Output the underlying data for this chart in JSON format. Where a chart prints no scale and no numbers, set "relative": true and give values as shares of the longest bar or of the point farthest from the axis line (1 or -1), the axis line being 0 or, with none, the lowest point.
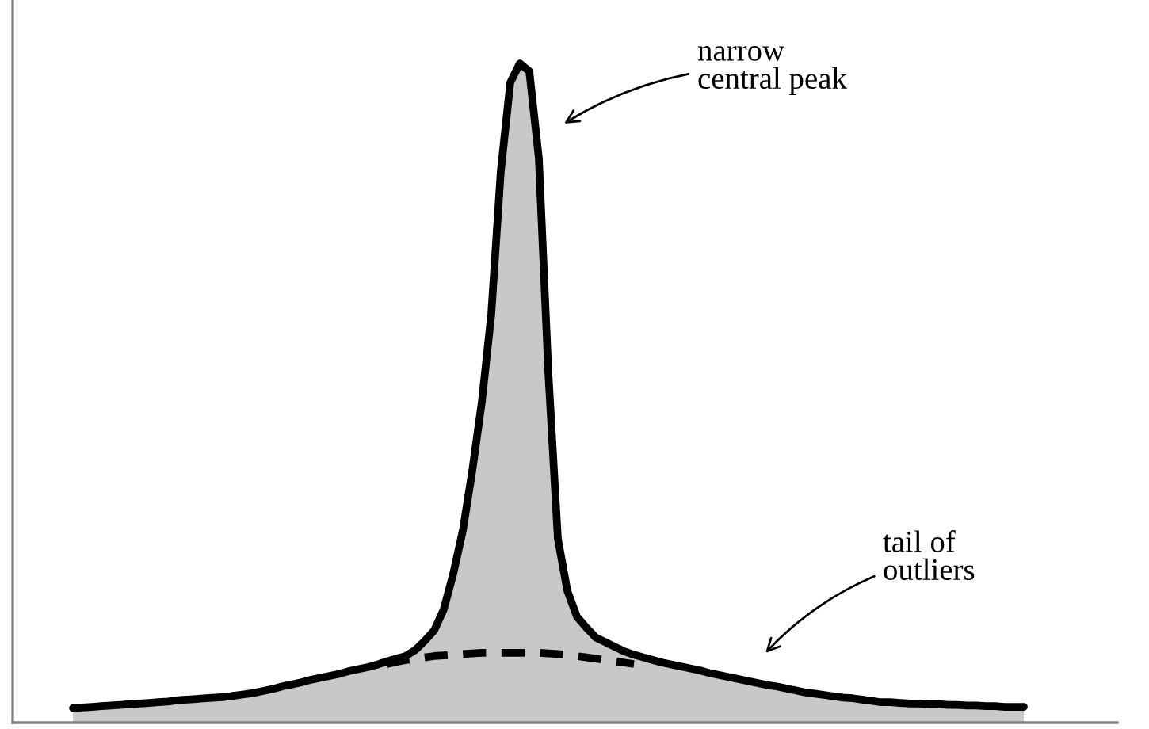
{
  "chart_data": {
    "type": "area",
    "relative": true,
    "categories": [
      null,
      null,
      null,
      null,
      null,
      null,
      null,
      null,
      null,
      null,
      null,
      null,
      null,
      null,
      null,
      null,
      null,
      null,
      null,
      null,
      null,
      null,
      null,
      null,
      null,
      null,
      null,
      null,
      null,
      null,
      null,
      null,
      null,
      null,
      null,
      null,
      null,
      null,
      null,
      null,
      null,
      null,
      null,
      null,
      null,
      null,
      null,
      null,
      null,
      null,
      null,
      null,
      null,
      null,
      null,
      null,
      null,
      null,
      null,
      null,
      null,
      null,
      null,
      null,
      null,
      null,
      null,
      null,
      null,
      null,
      null,
      null,
      null,
      null,
      null,
      null,
      null,
      null,
      null,
      null,
      null,
      null,
      null,
      null,
      null,
      null,
      null,
      null,
      null,
      null,
      null,
      null,
      null,
      null,
      null,
      null,
      null,
      null,
      null,
      null,
      null
    ],
    "series": [
      {
        "color": "#c8c8c8",
        "values": [
          0.022,
          0.023,
          0.024,
          0.025,
          0.026,
          0.027,
          0.028,
          0.029,
          0.03,
          0.031,
          0.032,
          0.034,
          0.035,
          0.036,
          0.037,
          0.038,
          0.039,
          0.041,
          0.043,
          0.045,
          0.048,
          0.051,
          0.055,
          0.058,
          0.061,
          0.065,
          0.068,
          0.071,
          0.074,
          0.078,
          0.081,
          0.084,
          0.088,
          0.093,
          0.097,
          0.101,
          0.11,
          0.124,
          0.14,
          0.172,
          0.226,
          0.291,
          0.382,
          0.486,
          0.62,
          0.837,
          0.971,
          1.0,
          0.988,
          0.856,
          0.531,
          0.279,
          0.2,
          0.161,
          0.144,
          0.129,
          0.122,
          0.115,
          0.108,
          0.103,
          0.099,
          0.095,
          0.091,
          0.088,
          0.085,
          0.082,
          0.079,
          0.075,
          0.072,
          0.069,
          0.066,
          0.063,
          0.06,
          0.057,
          0.055,
          0.052,
          0.049,
          0.046,
          0.044,
          0.042,
          0.04,
          0.038,
          0.037,
          0.035,
          0.033,
          0.031,
          0.031,
          0.03,
          0.029,
          0.029,
          0.028,
          0.028,
          0.027,
          0.027,
          0.026,
          0.026,
          0.025,
          0.025,
          0.024,
          0.024,
          0.024
        ]
      },
      {
        "type": "line",
        "color": "#000000",
        "line_style": "dashed",
        "values": [
          null,
          null,
          null,
          null,
          null,
          null,
          null,
          null,
          null,
          null,
          null,
          null,
          null,
          null,
          null,
          null,
          null,
          null,
          null,
          null,
          null,
          null,
          null,
          null,
          null,
          null,
          null,
          null,
          null,
          null,
          null,
          null,
          null,
          0.089,
          0.092,
          0.095,
          0.097,
          0.099,
          0.101,
          0.102,
          0.103,
          0.104,
          0.105,
          0.106,
          0.106,
          0.106,
          0.106,
          0.106,
          0.106,
          0.106,
          0.105,
          0.104,
          0.103,
          0.101,
          0.099,
          0.097,
          0.095,
          0.093,
          0.091,
          0.089,
          null,
          null,
          null,
          null,
          null,
          null,
          null,
          null,
          null,
          null,
          null,
          null,
          null,
          null,
          null,
          null,
          null,
          null,
          null,
          null,
          null,
          null,
          null,
          null,
          null,
          null,
          null,
          null,
          null,
          null,
          null,
          null,
          null,
          null,
          null,
          null,
          null,
          null,
          null,
          null,
          null
        ]
      }
    ],
    "annotations": [
      "narrow\ncentral peak",
      "tail of\noutliers"
    ]
  }
}
